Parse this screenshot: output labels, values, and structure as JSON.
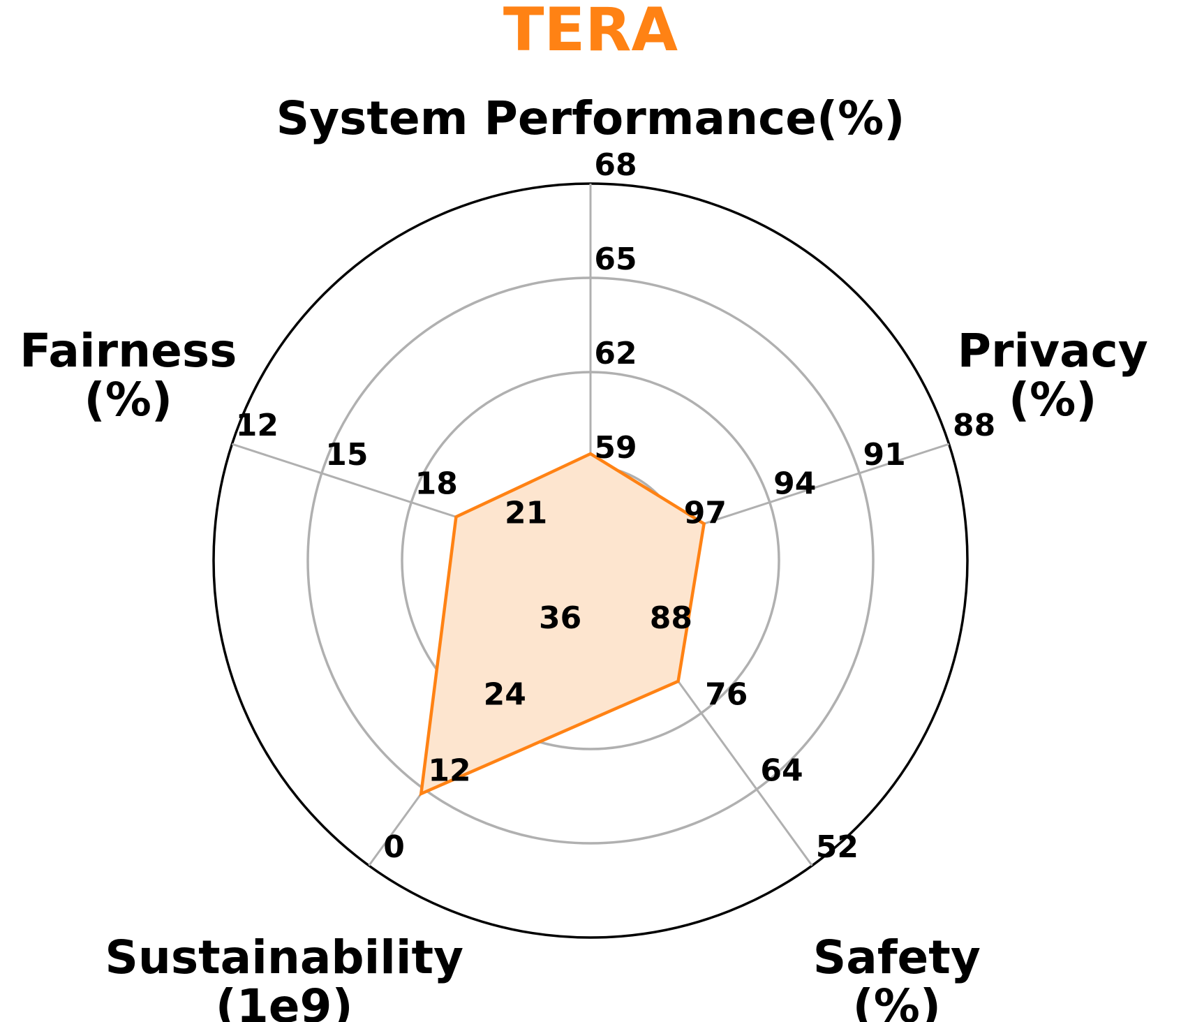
{
  "chart_data": {
    "type": "radar",
    "title": "TERA",
    "colors": {
      "title": "#ff8214",
      "series_line": "#ff8214",
      "series_fill": "#fde5cf",
      "grid": "#b0b0b0",
      "frame": "#000000"
    },
    "axes": [
      {
        "name": "System Performance(%)",
        "label_lines": [
          "System Performance(%)"
        ],
        "ticks": [
          "59",
          "62",
          "65",
          "68"
        ],
        "range": [
          56,
          68
        ]
      },
      {
        "name": "Privacy (%)",
        "label_lines": [
          "Privacy",
          "(%)"
        ],
        "ticks": [
          "97",
          "94",
          "91",
          "88"
        ],
        "range": [
          100,
          88
        ]
      },
      {
        "name": "Safety (%)",
        "label_lines": [
          "Safety",
          "(%)"
        ],
        "ticks": [
          "88",
          "76",
          "64",
          "52"
        ],
        "range": [
          100,
          52
        ]
      },
      {
        "name": "Sustainability (1e9)",
        "label_lines": [
          "Sustainability",
          "(1e9)"
        ],
        "ticks": [
          "36",
          "24",
          "12",
          "0"
        ],
        "range": [
          48,
          0
        ]
      },
      {
        "name": "Fairness (%)",
        "label_lines": [
          "Fairness",
          "(%)"
        ],
        "ticks": [
          "21",
          "18",
          "15",
          "12"
        ],
        "range": [
          24,
          12
        ]
      }
    ],
    "series": [
      {
        "values": [
          59.4,
          96.2,
          81.0,
          11.3,
          19.5
        ]
      }
    ],
    "grid": true
  }
}
